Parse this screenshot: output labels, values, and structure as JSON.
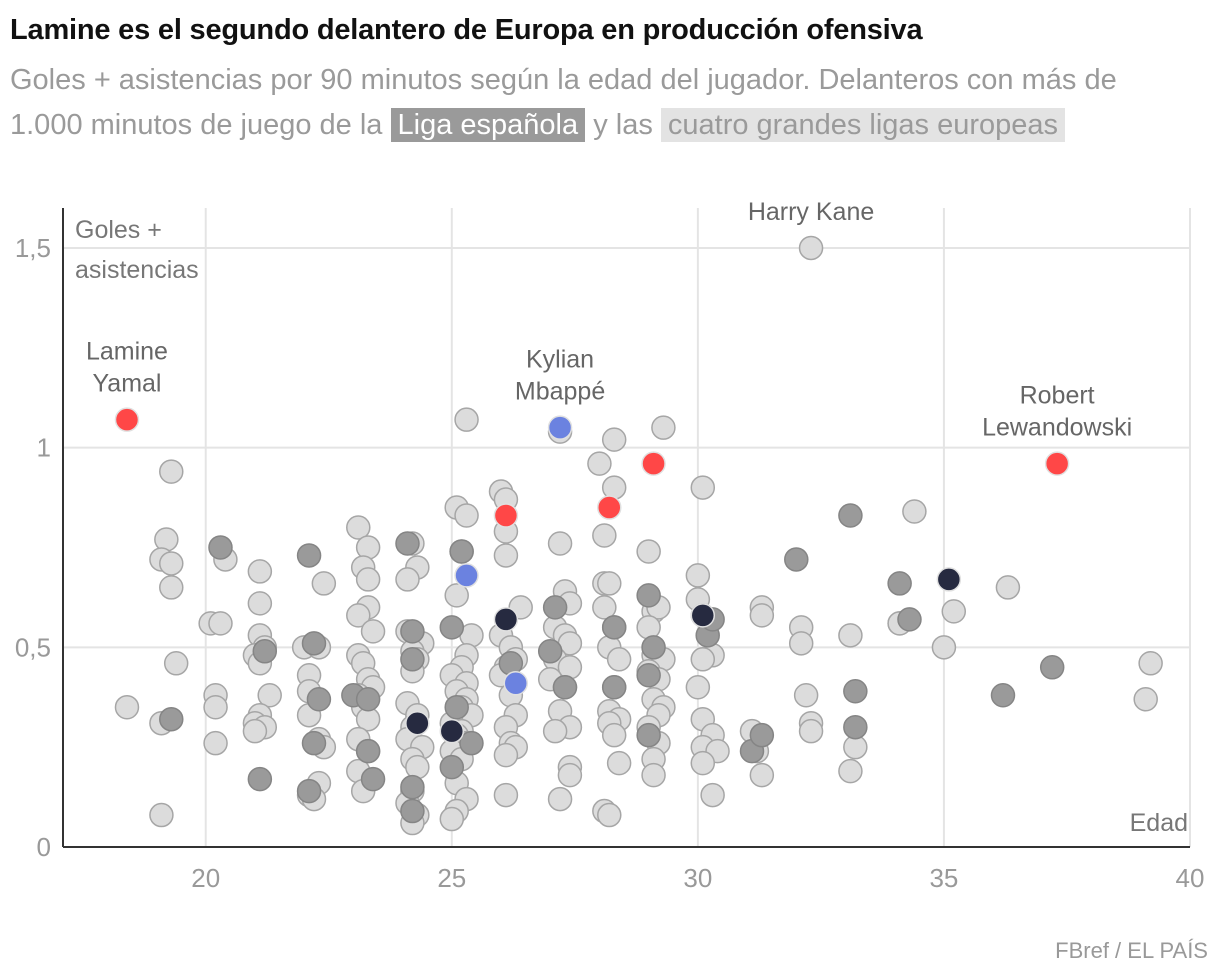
{
  "title": "Lamine es el segundo delantero de Europa en producción ofensiva",
  "subtitle": {
    "text_before": "Goles + asistencias por 90 minutos según la edad del jugador. Delanteros con más de 1.000 minutos de juego de la",
    "highlight_1": "Liga española",
    "text_middle": "y las",
    "highlight_2": "cuatro grandes ligas europeas"
  },
  "source": "FBref / EL PAÍS",
  "colors": {
    "other": "#dcdcdc",
    "other_stroke": "#a6a6a6",
    "liga": "#9a9a9a",
    "liga_stroke": "#858585",
    "barcelona": "#ff4747",
    "real_madrid": "#6b82e0",
    "dark": "#262a40",
    "grid": "#e4e4e4",
    "axis": "#333333"
  },
  "chart_data": {
    "type": "scatter",
    "xlabel": "Edad",
    "ylabel_lines": [
      "Goles +",
      "asistencias"
    ],
    "xlim": [
      17.1,
      40
    ],
    "ylim": [
      0,
      1.6
    ],
    "xticks": [
      {
        "v": 20,
        "label": "20"
      },
      {
        "v": 25,
        "label": "25"
      },
      {
        "v": 30,
        "label": "30"
      },
      {
        "v": 35,
        "label": "35"
      },
      {
        "v": 40,
        "label": "40"
      }
    ],
    "yticks": [
      {
        "v": 0,
        "label": "0"
      },
      {
        "v": 0.5,
        "label": "0,5"
      },
      {
        "v": 1,
        "label": "1"
      },
      {
        "v": 1.5,
        "label": "1,5"
      }
    ],
    "annotations": [
      {
        "lines": [
          "Lamine",
          "Yamal"
        ],
        "x": 18.4,
        "y": 1.07
      },
      {
        "lines": [
          "Kylian",
          "Mbappé"
        ],
        "x": 27.2,
        "y": 1.05
      },
      {
        "lines": [
          "Harry Kane"
        ],
        "x": 32.3,
        "y": 1.5
      },
      {
        "lines": [
          "Robert",
          "Lewandowski"
        ],
        "x": 37.3,
        "y": 0.96
      }
    ],
    "series": [
      {
        "group": "other",
        "points": [
          [
            32.3,
            1.5
          ],
          [
            25.3,
            1.07
          ],
          [
            27.2,
            1.04
          ],
          [
            29.3,
            1.05
          ],
          [
            28.3,
            1.02
          ],
          [
            28.0,
            0.96
          ],
          [
            30.1,
            0.9
          ],
          [
            28.3,
            0.9
          ],
          [
            25.1,
            0.85
          ],
          [
            25.3,
            0.83
          ],
          [
            26.0,
            0.89
          ],
          [
            26.1,
            0.87
          ],
          [
            26.1,
            0.79
          ],
          [
            26.1,
            0.73
          ],
          [
            28.1,
            0.78
          ],
          [
            27.2,
            0.76
          ],
          [
            29.0,
            0.74
          ],
          [
            19.3,
            0.94
          ],
          [
            19.2,
            0.77
          ],
          [
            19.1,
            0.72
          ],
          [
            19.3,
            0.71
          ],
          [
            19.3,
            0.65
          ],
          [
            19.4,
            0.46
          ],
          [
            18.4,
            0.35
          ],
          [
            19.1,
            0.31
          ],
          [
            19.1,
            0.08
          ],
          [
            20.4,
            0.72
          ],
          [
            20.1,
            0.56
          ],
          [
            20.3,
            0.56
          ],
          [
            20.2,
            0.38
          ],
          [
            20.2,
            0.35
          ],
          [
            20.2,
            0.26
          ],
          [
            21.1,
            0.69
          ],
          [
            21.1,
            0.61
          ],
          [
            21.1,
            0.53
          ],
          [
            21.2,
            0.5
          ],
          [
            21.0,
            0.48
          ],
          [
            21.1,
            0.46
          ],
          [
            21.3,
            0.38
          ],
          [
            21.1,
            0.33
          ],
          [
            21.0,
            0.31
          ],
          [
            21.2,
            0.3
          ],
          [
            21.0,
            0.29
          ],
          [
            22.0,
            0.5
          ],
          [
            22.4,
            0.66
          ],
          [
            22.3,
            0.5
          ],
          [
            22.1,
            0.43
          ],
          [
            22.1,
            0.39
          ],
          [
            22.1,
            0.33
          ],
          [
            22.3,
            0.27
          ],
          [
            22.4,
            0.25
          ],
          [
            22.3,
            0.16
          ],
          [
            22.1,
            0.13
          ],
          [
            22.2,
            0.12
          ],
          [
            23.1,
            0.8
          ],
          [
            23.3,
            0.75
          ],
          [
            23.2,
            0.7
          ],
          [
            23.3,
            0.67
          ],
          [
            23.3,
            0.6
          ],
          [
            23.1,
            0.58
          ],
          [
            23.4,
            0.54
          ],
          [
            23.1,
            0.48
          ],
          [
            23.2,
            0.46
          ],
          [
            23.3,
            0.42
          ],
          [
            23.4,
            0.4
          ],
          [
            23.1,
            0.38
          ],
          [
            23.2,
            0.35
          ],
          [
            23.3,
            0.32
          ],
          [
            23.1,
            0.27
          ],
          [
            23.3,
            0.24
          ],
          [
            23.1,
            0.19
          ],
          [
            23.2,
            0.14
          ],
          [
            24.2,
            0.76
          ],
          [
            24.3,
            0.7
          ],
          [
            24.1,
            0.67
          ],
          [
            24.1,
            0.54
          ],
          [
            24.4,
            0.51
          ],
          [
            24.2,
            0.49
          ],
          [
            24.3,
            0.47
          ],
          [
            24.2,
            0.44
          ],
          [
            24.1,
            0.36
          ],
          [
            24.3,
            0.33
          ],
          [
            24.2,
            0.3
          ],
          [
            24.1,
            0.27
          ],
          [
            24.4,
            0.25
          ],
          [
            24.2,
            0.22
          ],
          [
            24.3,
            0.2
          ],
          [
            24.2,
            0.14
          ],
          [
            24.1,
            0.11
          ],
          [
            24.3,
            0.08
          ],
          [
            24.2,
            0.06
          ],
          [
            25.2,
            0.74
          ],
          [
            25.1,
            0.63
          ],
          [
            25.4,
            0.53
          ],
          [
            25.3,
            0.48
          ],
          [
            25.2,
            0.45
          ],
          [
            25.0,
            0.43
          ],
          [
            25.3,
            0.41
          ],
          [
            25.1,
            0.39
          ],
          [
            25.3,
            0.37
          ],
          [
            25.2,
            0.35
          ],
          [
            25.4,
            0.33
          ],
          [
            25.0,
            0.31
          ],
          [
            25.2,
            0.29
          ],
          [
            25.1,
            0.28
          ],
          [
            25.3,
            0.26
          ],
          [
            25.0,
            0.24
          ],
          [
            25.2,
            0.22
          ],
          [
            25.1,
            0.16
          ],
          [
            25.3,
            0.12
          ],
          [
            25.1,
            0.09
          ],
          [
            25.0,
            0.07
          ],
          [
            26.4,
            0.6
          ],
          [
            26.0,
            0.53
          ],
          [
            26.2,
            0.5
          ],
          [
            26.3,
            0.47
          ],
          [
            26.1,
            0.45
          ],
          [
            26.0,
            0.43
          ],
          [
            26.2,
            0.38
          ],
          [
            26.3,
            0.33
          ],
          [
            26.1,
            0.3
          ],
          [
            26.2,
            0.26
          ],
          [
            26.3,
            0.25
          ],
          [
            26.1,
            0.23
          ],
          [
            26.1,
            0.13
          ],
          [
            27.3,
            0.64
          ],
          [
            27.4,
            0.61
          ],
          [
            27.1,
            0.55
          ],
          [
            27.3,
            0.53
          ],
          [
            27.4,
            0.51
          ],
          [
            27.1,
            0.47
          ],
          [
            27.4,
            0.45
          ],
          [
            27.0,
            0.42
          ],
          [
            27.3,
            0.4
          ],
          [
            27.2,
            0.34
          ],
          [
            27.4,
            0.3
          ],
          [
            27.1,
            0.29
          ],
          [
            27.4,
            0.2
          ],
          [
            27.4,
            0.18
          ],
          [
            27.2,
            0.12
          ],
          [
            28.1,
            0.66
          ],
          [
            28.2,
            0.66
          ],
          [
            28.1,
            0.6
          ],
          [
            28.3,
            0.55
          ],
          [
            28.2,
            0.5
          ],
          [
            28.4,
            0.47
          ],
          [
            28.3,
            0.4
          ],
          [
            28.2,
            0.34
          ],
          [
            28.4,
            0.32
          ],
          [
            28.2,
            0.31
          ],
          [
            28.3,
            0.28
          ],
          [
            28.4,
            0.21
          ],
          [
            28.1,
            0.09
          ],
          [
            28.2,
            0.08
          ],
          [
            29.1,
            0.59
          ],
          [
            29.2,
            0.6
          ],
          [
            29.0,
            0.55
          ],
          [
            29.1,
            0.48
          ],
          [
            29.3,
            0.47
          ],
          [
            29.0,
            0.44
          ],
          [
            29.2,
            0.42
          ],
          [
            29.1,
            0.37
          ],
          [
            29.3,
            0.35
          ],
          [
            29.2,
            0.33
          ],
          [
            29.0,
            0.3
          ],
          [
            29.2,
            0.26
          ],
          [
            29.1,
            0.22
          ],
          [
            29.1,
            0.18
          ],
          [
            30.0,
            0.68
          ],
          [
            30.0,
            0.62
          ],
          [
            30.1,
            0.58
          ],
          [
            30.3,
            0.48
          ],
          [
            30.1,
            0.47
          ],
          [
            30.0,
            0.4
          ],
          [
            30.1,
            0.32
          ],
          [
            30.3,
            0.28
          ],
          [
            30.1,
            0.25
          ],
          [
            30.4,
            0.24
          ],
          [
            30.1,
            0.21
          ],
          [
            30.3,
            0.13
          ],
          [
            31.3,
            0.6
          ],
          [
            31.3,
            0.58
          ],
          [
            31.1,
            0.29
          ],
          [
            31.2,
            0.24
          ],
          [
            31.3,
            0.18
          ],
          [
            32.1,
            0.55
          ],
          [
            32.1,
            0.51
          ],
          [
            32.2,
            0.38
          ],
          [
            32.3,
            0.31
          ],
          [
            32.3,
            0.29
          ],
          [
            33.1,
            0.53
          ],
          [
            33.2,
            0.25
          ],
          [
            33.1,
            0.19
          ],
          [
            34.4,
            0.84
          ],
          [
            34.1,
            0.56
          ],
          [
            34.1,
            0.56
          ],
          [
            35.2,
            0.59
          ],
          [
            35.0,
            0.5
          ],
          [
            36.3,
            0.65
          ],
          [
            39.2,
            0.46
          ],
          [
            39.1,
            0.37
          ]
        ]
      },
      {
        "group": "liga",
        "points": [
          [
            20.3,
            0.75
          ],
          [
            19.3,
            0.32
          ],
          [
            21.2,
            0.49
          ],
          [
            21.1,
            0.17
          ],
          [
            22.1,
            0.73
          ],
          [
            22.2,
            0.51
          ],
          [
            22.3,
            0.37
          ],
          [
            22.2,
            0.26
          ],
          [
            22.1,
            0.14
          ],
          [
            23.0,
            0.38
          ],
          [
            23.3,
            0.37
          ],
          [
            23.3,
            0.24
          ],
          [
            23.4,
            0.17
          ],
          [
            24.1,
            0.76
          ],
          [
            24.2,
            0.54
          ],
          [
            24.2,
            0.47
          ],
          [
            24.2,
            0.15
          ],
          [
            24.2,
            0.09
          ],
          [
            25.0,
            0.55
          ],
          [
            25.1,
            0.35
          ],
          [
            25.0,
            0.2
          ],
          [
            25.2,
            0.74
          ],
          [
            25.4,
            0.26
          ],
          [
            26.2,
            0.46
          ],
          [
            27.1,
            0.6
          ],
          [
            27.0,
            0.49
          ],
          [
            27.3,
            0.4
          ],
          [
            28.3,
            0.55
          ],
          [
            28.3,
            0.4
          ],
          [
            29.0,
            0.63
          ],
          [
            29.1,
            0.5
          ],
          [
            29.0,
            0.43
          ],
          [
            29.0,
            0.28
          ],
          [
            30.2,
            0.53
          ],
          [
            30.3,
            0.57
          ],
          [
            31.1,
            0.24
          ],
          [
            31.3,
            0.28
          ],
          [
            32.0,
            0.72
          ],
          [
            33.1,
            0.83
          ],
          [
            33.2,
            0.39
          ],
          [
            33.2,
            0.3
          ],
          [
            34.1,
            0.66
          ],
          [
            34.3,
            0.57
          ],
          [
            36.2,
            0.38
          ],
          [
            37.2,
            0.45
          ]
        ]
      },
      {
        "group": "barcelona",
        "points": [
          [
            18.4,
            1.07
          ],
          [
            29.1,
            0.96
          ],
          [
            26.1,
            0.83
          ],
          [
            28.2,
            0.85
          ],
          [
            37.3,
            0.96
          ]
        ]
      },
      {
        "group": "real_madrid",
        "points": [
          [
            27.2,
            1.05
          ],
          [
            25.3,
            0.68
          ],
          [
            26.3,
            0.41
          ]
        ]
      },
      {
        "group": "dark",
        "points": [
          [
            26.1,
            0.57
          ],
          [
            30.1,
            0.58
          ],
          [
            35.1,
            0.67
          ],
          [
            24.3,
            0.31
          ],
          [
            25.0,
            0.29
          ]
        ]
      }
    ]
  }
}
